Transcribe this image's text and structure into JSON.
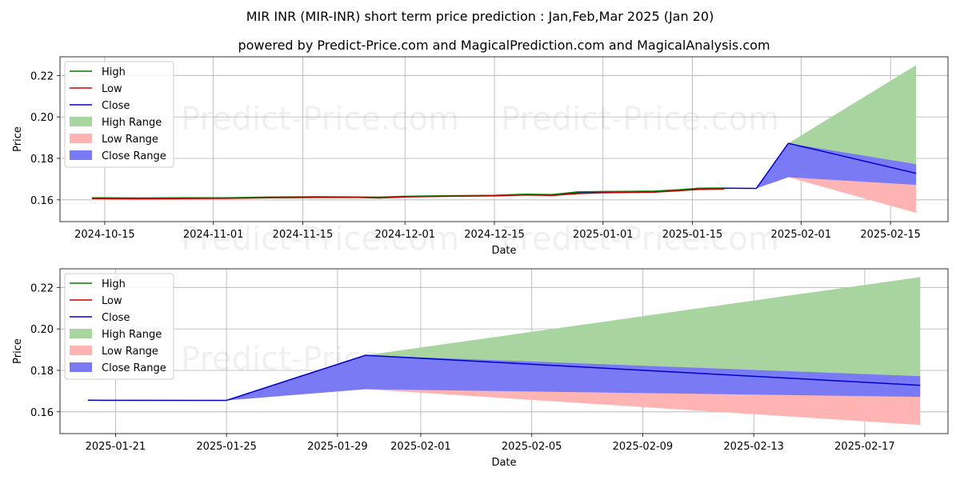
{
  "title": "MIR INR (MIR-INR) short term price prediction : Jan,Feb,Mar 2025 (Jan 20)",
  "subtitle": "powered by Predict-Price.com and MagicalPrediction.com and MagicalAnalysis.com",
  "watermark": "Predict-Price.com",
  "colors": {
    "high": "#007f00",
    "low": "#cc0000",
    "close": "#0000cc",
    "high_range": "#a8d4a0",
    "low_range": "#ffb4b4",
    "close_range": "#7a7af5",
    "grid": "#b0b0b0"
  },
  "chart_data": [
    {
      "type": "line",
      "name": "full-range",
      "xlabel": "Date",
      "ylabel": "Price",
      "xlim": [
        "2024-10-08",
        "2025-02-24"
      ],
      "ylim": [
        0.1495,
        0.229
      ],
      "x_ticks": [
        "2024-10-15",
        "2024-11-01",
        "2024-11-15",
        "2024-12-01",
        "2024-12-15",
        "2025-01-01",
        "2025-01-15",
        "2025-02-01",
        "2025-02-15"
      ],
      "y_ticks": [
        "0.16",
        "0.18",
        "0.20",
        "0.22"
      ],
      "legend": [
        "High",
        "Low",
        "Close",
        "High Range",
        "Low Range",
        "Close Range"
      ],
      "legend_position": "top-left",
      "grid": true,
      "historical": {
        "dates": [
          "2024-10-13",
          "2024-10-20",
          "2024-10-27",
          "2024-11-03",
          "2024-11-10",
          "2024-11-17",
          "2024-11-24",
          "2024-11-27",
          "2024-12-01",
          "2024-12-08",
          "2024-12-15",
          "2024-12-20",
          "2024-12-24",
          "2024-12-28",
          "2025-01-01",
          "2025-01-05",
          "2025-01-09",
          "2025-01-13",
          "2025-01-16",
          "2025-01-20"
        ],
        "high": [
          0.161,
          0.1609,
          0.161,
          0.161,
          0.1614,
          0.1615,
          0.1614,
          0.1613,
          0.1617,
          0.162,
          0.1622,
          0.1627,
          0.1625,
          0.1638,
          0.164,
          0.1641,
          0.1642,
          0.1649,
          0.1656,
          0.1657
        ],
        "low": [
          0.1606,
          0.1605,
          0.1606,
          0.1607,
          0.161,
          0.1611,
          0.1611,
          0.1609,
          0.1614,
          0.1617,
          0.1619,
          0.1623,
          0.1621,
          0.163,
          0.1634,
          0.1636,
          0.1637,
          0.1644,
          0.165,
          0.1652
        ],
        "close": [
          0.1608,
          0.1607,
          0.1608,
          0.1608,
          0.1612,
          0.1613,
          0.1612,
          0.1611,
          0.1615,
          0.1619,
          0.162,
          0.1625,
          0.1623,
          0.1634,
          0.1637,
          0.1638,
          0.164,
          0.1647,
          0.1653,
          0.1655
        ]
      }
    },
    {
      "type": "line",
      "name": "prediction-zoom",
      "xlabel": "Date",
      "ylabel": "Price",
      "xlim": [
        "2025-01-19",
        "2025-02-20"
      ],
      "ylim": [
        0.1495,
        0.229
      ],
      "x_ticks": [
        "2025-01-21",
        "2025-01-25",
        "2025-01-29",
        "2025-02-01",
        "2025-02-05",
        "2025-02-09",
        "2025-02-13",
        "2025-02-17"
      ],
      "y_ticks": [
        "0.16",
        "0.18",
        "0.20",
        "0.22"
      ],
      "legend": [
        "High",
        "Low",
        "Close",
        "High Range",
        "Low Range",
        "Close Range"
      ],
      "legend_position": "top-left",
      "grid": true
    }
  ],
  "prediction": {
    "dates": [
      "2025-01-20",
      "2025-01-25",
      "2025-01-30",
      "2025-02-19"
    ],
    "close": [
      0.1656,
      0.1655,
      0.1873,
      0.1728
    ],
    "high_range_upper": [
      0.1656,
      0.1655,
      0.1873,
      0.225
    ],
    "close_range_upper": [
      0.1656,
      0.1655,
      0.1873,
      0.1772
    ],
    "close_range_lower": [
      0.1656,
      0.1655,
      0.1709,
      0.1672
    ],
    "low_range_lower": [
      0.1656,
      0.1655,
      0.1709,
      0.1537
    ]
  }
}
